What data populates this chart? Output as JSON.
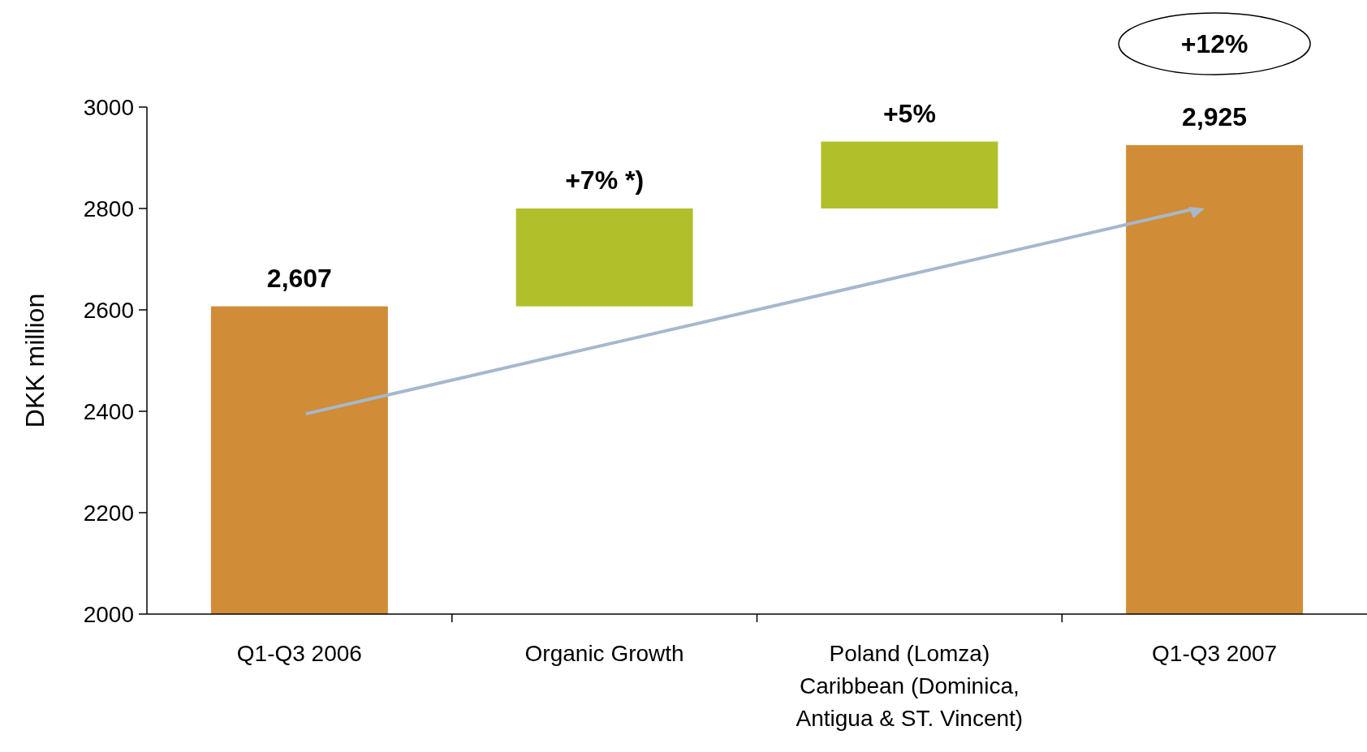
{
  "chart_data": {
    "type": "bar",
    "ylabel": "DKK million",
    "categories": [
      "Q1-Q3 2006",
      "Organic Growth",
      "Poland (Lomza)\nCaribbean (Dominica,\nAntigua & ST. Vincent)",
      "Q1-Q3 2007"
    ],
    "values": [
      2607,
      193,
      132,
      2925
    ],
    "base": [
      null,
      2607,
      2800,
      null
    ],
    "colors": [
      "#d08c36",
      "#b0c02a",
      "#b0c02a",
      "#d08c36"
    ],
    "value_labels": [
      "2,607",
      null,
      null,
      "2,925"
    ],
    "annotations": [
      {
        "text": "+7% *)",
        "x": "Organic Growth",
        "y": 2800
      },
      {
        "text": "+5%",
        "x": "Poland (Lomza)\nCaribbean (Dominica,\nAntigua & ST. Vincent)",
        "y": 2932
      },
      "+12%"
    ],
    "ylim": [
      2000,
      3000
    ],
    "yticks": [
      2000,
      2200,
      2400,
      2600,
      2800,
      3000
    ],
    "grid": false
  }
}
